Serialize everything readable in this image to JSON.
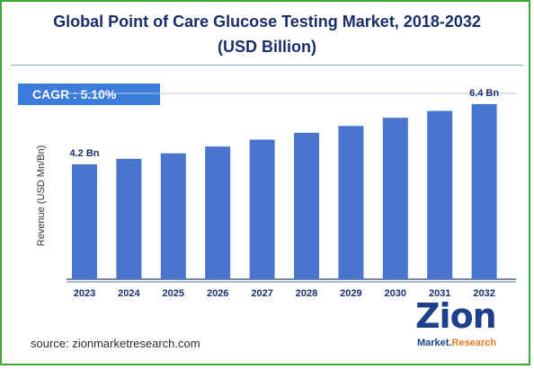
{
  "title_line1": "Global Point of Care Glucose Testing Market, 2018-2032",
  "title_line2": "(USD Billion)",
  "cagr": "CAGR :  5.10%",
  "source": "source: zionmarketresearch.com",
  "logo": {
    "main": "Zion",
    "sub1": "Market.",
    "sub2": "Research"
  },
  "colors": {
    "bar": "#4a75cf",
    "title": "#1a2d6b",
    "frame": "#3fa535",
    "cagr_bg": "#3a7bdc"
  },
  "chart_data": {
    "type": "bar",
    "title": "Global Point of Care Glucose Testing Market, 2018-2032",
    "ylabel": "Revenue (USD Mn/Bn)",
    "xlabel": "",
    "categories": [
      "2023",
      "2024",
      "2025",
      "2026",
      "2027",
      "2028",
      "2029",
      "2030",
      "2031",
      "2032"
    ],
    "values": [
      4.2,
      4.4,
      4.6,
      4.85,
      5.1,
      5.35,
      5.6,
      5.9,
      6.15,
      6.4
    ],
    "data_labels": {
      "0": "4.2 Bn",
      "9": "6.4 Bn"
    },
    "ylim": [
      0,
      7.25
    ],
    "grid": false,
    "legend": "none"
  }
}
